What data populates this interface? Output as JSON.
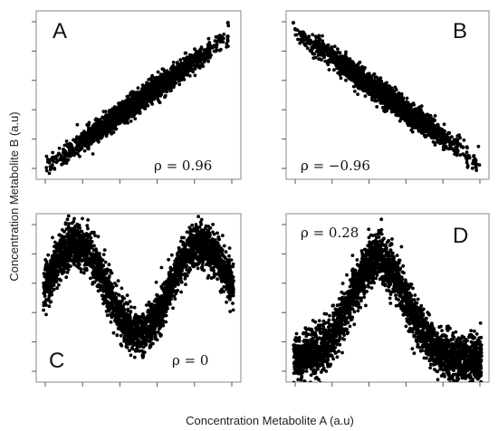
{
  "figure": {
    "xlabel": "Concentration Metabolite A (a.u)",
    "ylabel": "Concentration Metabolite B (a.u)"
  },
  "chart_data": [
    {
      "type": "scatter",
      "panel": "A",
      "annotation": "ρ = 0.96",
      "relationship": "linear increasing",
      "x_range": [
        0,
        1
      ],
      "y_range": [
        0,
        1
      ],
      "trend": {
        "x": [
          0.0,
          1.0
        ],
        "y": [
          0.02,
          0.9
        ]
      },
      "outliers": [
        [
          1.0,
          1.0
        ]
      ]
    },
    {
      "type": "scatter",
      "panel": "B",
      "annotation": "ρ = −0.96",
      "relationship": "linear decreasing",
      "x_range": [
        0,
        1
      ],
      "y_range": [
        0,
        1
      ],
      "trend": {
        "x": [
          0.0,
          1.0
        ],
        "y": [
          0.93,
          0.04
        ]
      },
      "outliers": [
        [
          0.0,
          1.0
        ]
      ]
    },
    {
      "type": "scatter",
      "panel": "C",
      "annotation": "ρ = 0",
      "relationship": "sinusoidal",
      "x_range": [
        0,
        1
      ],
      "y_range": [
        0,
        1
      ],
      "peaks_x": [
        0.17,
        0.83
      ],
      "trough_x": 0.5,
      "peak_y": 0.85,
      "trough_y": 0.27
    },
    {
      "type": "scatter",
      "panel": "D",
      "annotation": "ρ = 0.28",
      "relationship": "single peak",
      "x_range": [
        0,
        1
      ],
      "y_range": [
        0,
        1
      ],
      "peak_x": 0.45,
      "peak_y": 0.76,
      "baseline_y": 0.1
    }
  ]
}
